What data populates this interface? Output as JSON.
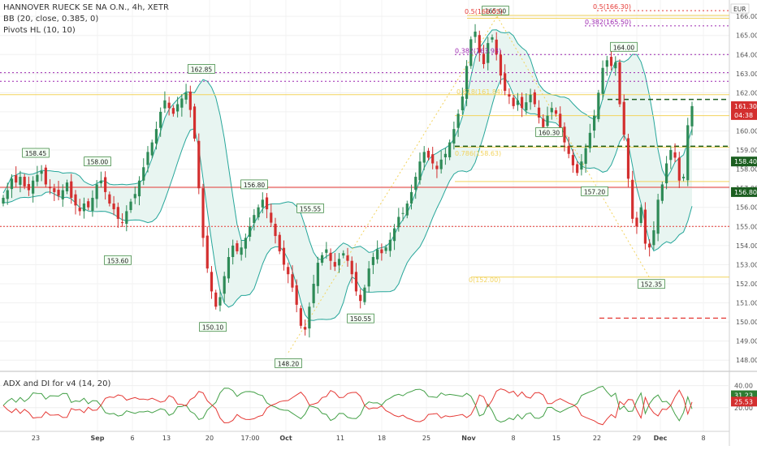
{
  "header": {
    "symbol_line": "HANNOVER RUECK SE NA O.N., 4h, XETR",
    "bb_line": "BB (20, close, 0.385, 0)",
    "pivots_line": "Pivots HL (10, 10)",
    "adx_line": "ADX and DI for v4 (14, 20)"
  },
  "axis": {
    "currency": "EUR",
    "price_ticks": [
      "166.00",
      "165.00",
      "164.00",
      "163.00",
      "162.00",
      "161.00",
      "160.00",
      "159.00",
      "158.00",
      "157.00",
      "156.00",
      "155.00",
      "154.00",
      "153.00",
      "152.00",
      "151.00",
      "150.00",
      "149.00",
      "148.00"
    ],
    "date_ticks": [
      "23",
      "Sep",
      "6",
      "13",
      "20",
      "17:00",
      "Oct",
      "11",
      "18",
      "25",
      "Nov",
      "8",
      "15",
      "22",
      "29",
      "Dec",
      "8"
    ],
    "adx_ticks": [
      "40.00",
      "20.00"
    ]
  },
  "price_badges": {
    "last": "161.30",
    "countdown": "04:38",
    "upper": "158.40",
    "lower": "156.80"
  },
  "adx_badges": {
    "green": "31.23",
    "red": "25.53"
  },
  "pivot_labels": [
    "158.45",
    "158.00",
    "153.60",
    "162.85",
    "150.10",
    "156.80",
    "148.20",
    "155.55",
    "150.55",
    "165.90",
    "160.30",
    "157.20",
    "164.00",
    "152.35"
  ],
  "fib_labels": [
    "0.5(166.05)",
    "0.382(163.93)",
    "0.618(161.84)",
    "0.786(158.63)",
    "0(152.00)",
    "0.5(166.30)",
    "0.382(165.50)"
  ],
  "colors": {
    "up": "#2e8b57",
    "down": "#d32f2f",
    "bb_fill": "#e8f5f1",
    "bb_line": "#26a69a",
    "fib": "#f2d35e",
    "purple": "#9c27b0",
    "red_level": "#e53935",
    "green_dash": "#1b5e20",
    "di_plus": "#43a047",
    "di_minus": "#e53935"
  },
  "chart_data": {
    "type": "candlestick",
    "title": "HANNOVER RUECK SE NA O.N., 4h, XETR",
    "price_range": [
      147.5,
      166.6
    ],
    "close_path": [
      156.5,
      156.9,
      157.5,
      157.3,
      157.6,
      157.1,
      156.9,
      157.4,
      157.7,
      157.9,
      157.2,
      157.0,
      156.8,
      156.6,
      156.9,
      157.3,
      156.5,
      156.1,
      155.8,
      156.2,
      156.0,
      156.5,
      157.2,
      157.4,
      156.8,
      156.2,
      155.9,
      155.4,
      155.2,
      155.8,
      156.3,
      156.7,
      157.4,
      158.1,
      158.9,
      159.4,
      160.1,
      161.0,
      161.6,
      161.2,
      160.9,
      161.4,
      161.7,
      162.0,
      161.1,
      159.6,
      157.0,
      154.4,
      152.8,
      151.6,
      150.8,
      151.3,
      152.4,
      153.4,
      154.0,
      153.7,
      153.9,
      154.4,
      155.0,
      155.6,
      156.0,
      156.4,
      155.9,
      155.2,
      154.5,
      153.7,
      153.0,
      152.5,
      151.8,
      150.9,
      149.8,
      149.6,
      150.8,
      152.0,
      153.1,
      153.5,
      153.8,
      153.2,
      152.9,
      153.3,
      153.6,
      153.2,
      152.5,
      151.6,
      151.1,
      151.8,
      152.8,
      153.4,
      153.8,
      153.6,
      153.9,
      154.3,
      154.9,
      155.5,
      155.7,
      156.2,
      156.8,
      157.6,
      158.4,
      158.9,
      158.6,
      158.3,
      158.0,
      158.5,
      158.8,
      159.4,
      160.1,
      160.9,
      161.8,
      163.4,
      164.8,
      165.2,
      164.1,
      163.5,
      164.6,
      164.9,
      164.0,
      162.9,
      162.1,
      161.8,
      161.3,
      161.6,
      161.2,
      161.5,
      161.9,
      161.4,
      160.7,
      160.2,
      160.8,
      161.2,
      160.9,
      160.1,
      159.4,
      158.8,
      158.2,
      157.8,
      158.4,
      159.1,
      159.9,
      160.8,
      162.0,
      163.3,
      163.7,
      163.4,
      163.6,
      161.4,
      159.8,
      157.5,
      155.4,
      155.0,
      156.0,
      154.1,
      153.9,
      154.8,
      156.4,
      157.2,
      158.3,
      159.0,
      158.6,
      157.4,
      157.6,
      160.3,
      161.3
    ]
  }
}
